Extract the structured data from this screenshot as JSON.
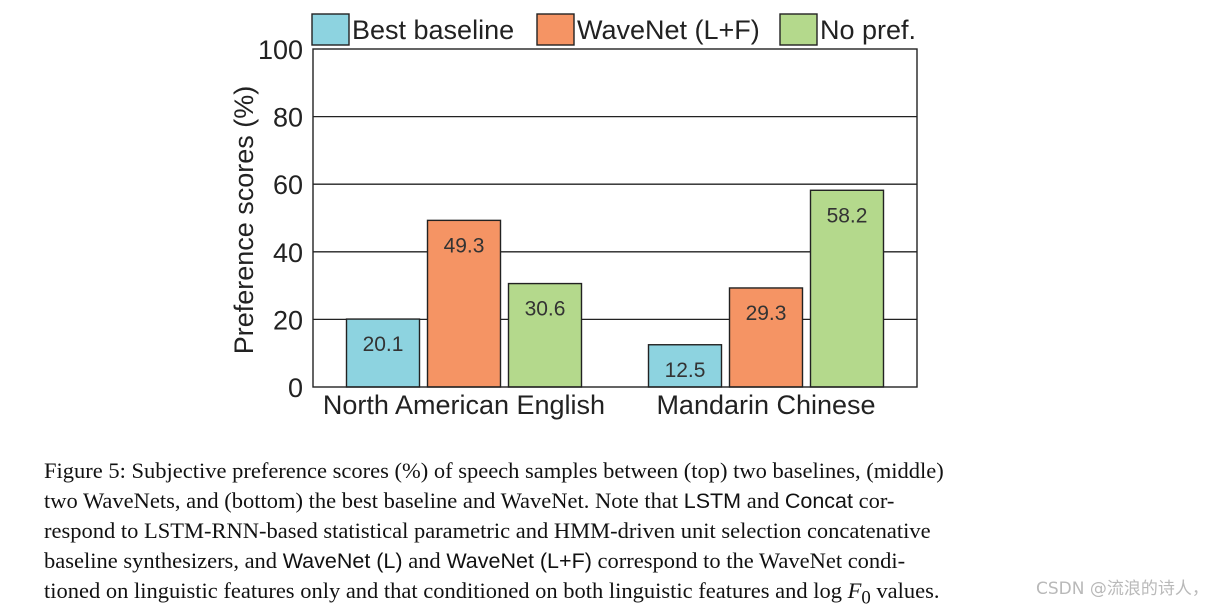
{
  "chart_data": {
    "type": "bar",
    "categories": [
      "North American English",
      "Mandarin Chinese"
    ],
    "series": [
      {
        "name": "Best baseline",
        "color": "#8dd3e0",
        "values": [
          20.1,
          12.5
        ],
        "labels": [
          "20.1",
          "12.5"
        ]
      },
      {
        "name": "WaveNet (L+F)",
        "color": "#f59464",
        "values": [
          49.3,
          29.3
        ],
        "labels": [
          "49.3",
          "29.3"
        ]
      },
      {
        "name": "No pref.",
        "color": "#b4d98c",
        "values": [
          30.6,
          58.2
        ],
        "labels": [
          "30.6",
          "58.2"
        ]
      }
    ],
    "title": "",
    "xlabel": "",
    "ylabel": "Preference scores (%)",
    "ylim": [
      0,
      100
    ],
    "yticks": [
      0,
      20,
      40,
      60,
      80,
      100
    ],
    "grid": true,
    "legend": "top"
  },
  "caption": {
    "l1": "Figure 5: Subjective preference scores (%) of speech samples between (top) two baselines, (middle)",
    "l2a": "two WaveNets, and (bottom) the best baseline and WaveNet.  Note that ",
    "l2b": "LSTM",
    "l2c": " and ",
    "l2d": "Concat",
    "l2e": " cor-",
    "l3": "respond to LSTM-RNN-based statistical parametric and HMM-driven unit selection concatenative",
    "l4a": "baseline synthesizers, and ",
    "l4b": "WaveNet (L)",
    "l4c": " and ",
    "l4d": "WaveNet (L+F)",
    "l4e": " correspond to the WaveNet condi-",
    "l5a": "tioned on linguistic features only and that conditioned on both linguistic features and log ",
    "l5b": "F",
    "l5c": "0",
    "l5d": " values."
  },
  "watermark": "CSDN @流浪的诗人，"
}
